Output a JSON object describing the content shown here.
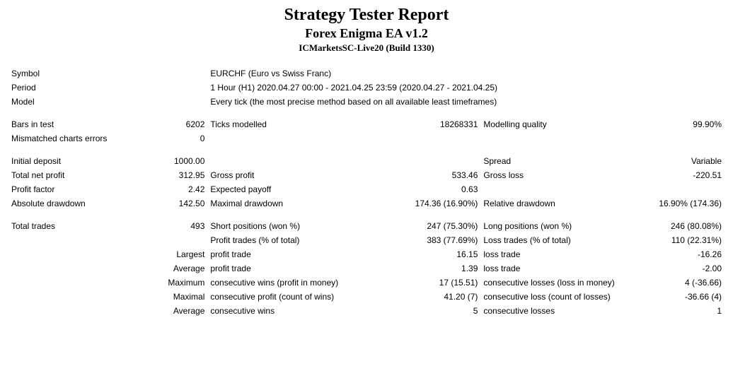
{
  "header": {
    "title": "Strategy Tester Report",
    "subtitle": "Forex Enigma EA v1.2",
    "build": "ICMarketsSC-Live20 (Build 1330)"
  },
  "info": {
    "symbol_label": "Symbol",
    "symbol_value": "EURCHF (Euro vs Swiss Franc)",
    "period_label": "Period",
    "period_value": "1 Hour (H1) 2020.04.27 00:00 - 2021.04.25 23:59 (2020.04.27 - 2021.04.25)",
    "model_label": "Model",
    "model_value": "Every tick (the most precise method based on all available least timeframes)"
  },
  "bars": {
    "bars_label": "Bars in test",
    "bars_value": "6202",
    "ticks_label": "Ticks modelled",
    "ticks_value": "18268331",
    "quality_label": "Modelling quality",
    "quality_value": "99.90%",
    "mism_label": "Mismatched charts errors",
    "mism_value": "0"
  },
  "deposit": {
    "init_label": "Initial deposit",
    "init_value": "1000.00",
    "spread_label": "Spread",
    "spread_value": "Variable",
    "netprofit_label": "Total net profit",
    "netprofit_value": "312.95",
    "grossprofit_label": "Gross profit",
    "grossprofit_value": "533.46",
    "grossloss_label": "Gross loss",
    "grossloss_value": "-220.51",
    "pf_label": "Profit factor",
    "pf_value": "2.42",
    "ep_label": "Expected payoff",
    "ep_value": "0.63",
    "absdd_label": "Absolute drawdown",
    "absdd_value": "142.50",
    "maxdd_label": "Maximal drawdown",
    "maxdd_value": "174.36 (16.90%)",
    "reldd_label": "Relative drawdown",
    "reldd_value": "16.90% (174.36)"
  },
  "trades": {
    "total_label": "Total trades",
    "total_value": "493",
    "short_label": "Short positions (won %)",
    "short_value": "247 (75.30%)",
    "long_label": "Long positions (won %)",
    "long_value": "246 (80.08%)",
    "ptrades_label": "Profit trades (% of total)",
    "ptrades_value": "383 (77.69%)",
    "ltrades_label": "Loss trades (% of total)",
    "ltrades_value": "110 (22.31%)",
    "largest_label": "Largest",
    "largest_pt_label": "profit trade",
    "largest_pt_value": "16.15",
    "largest_lt_label": "loss trade",
    "largest_lt_value": "-16.26",
    "average_label": "Average",
    "average_pt_label": "profit trade",
    "average_pt_value": "1.39",
    "average_lt_label": "loss trade",
    "average_lt_value": "-2.00",
    "maximum_label": "Maximum",
    "max_cw_label": "consecutive wins (profit in money)",
    "max_cw_value": "17 (15.51)",
    "max_cl_label": "consecutive losses (loss in money)",
    "max_cl_value": "4 (-36.66)",
    "maximal_label": "Maximal",
    "maxp_label": "consecutive profit (count of wins)",
    "maxp_value": "41.20 (7)",
    "maxl_label": "consecutive loss (count of losses)",
    "maxl_value": "-36.66 (4)",
    "avg_label": "Average",
    "avg_cw_label": "consecutive wins",
    "avg_cw_value": "5",
    "avg_cl_label": "consecutive losses",
    "avg_cl_value": "1"
  }
}
